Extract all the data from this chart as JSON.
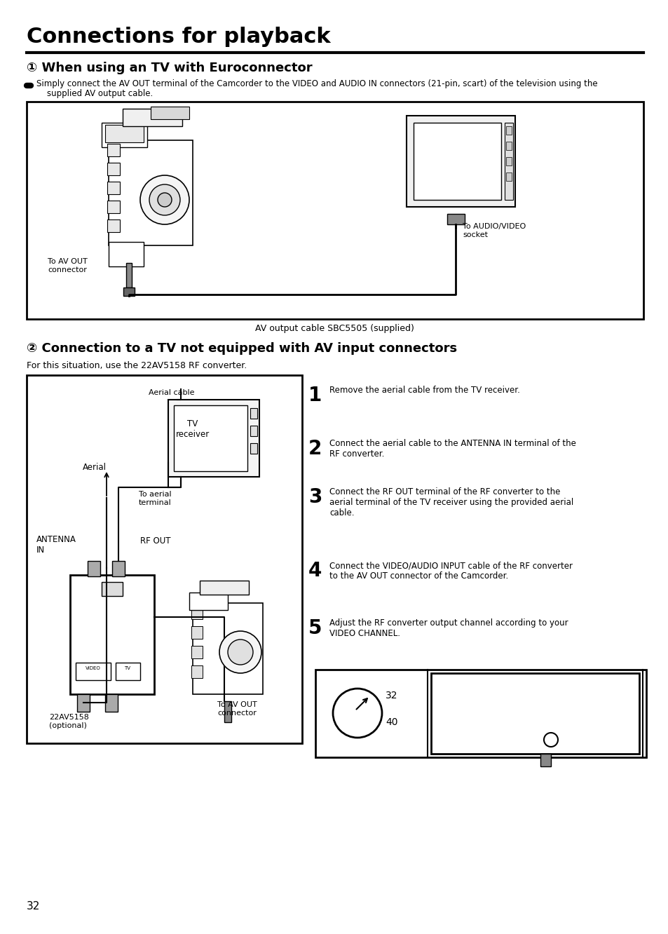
{
  "title": "Connections for playback",
  "section1_title": "① When using an TV with Euroconnector",
  "section1_bullet": "Simply connect the AV OUT terminal of the Camcorder to the VIDEO and AUDIO IN connectors (21-pin, scart) of the television using the",
  "section1_bullet2": "supplied AV output cable.",
  "section2_title": "② Connection to a TV not equipped with AV input connectors",
  "section2_intro": "For this situation, use the 22AV5158 RF converter.",
  "av_cable_label": "AV output cable SBC5505 (supplied)",
  "to_av_out": "To AV OUT\nconnector",
  "to_audio_video": "To AUDIO/VIDEO\nsocket",
  "aerial_cable_label": "Aerial cable",
  "aerial_label": "Aerial",
  "antenna_in": "ANTENNA\nIN",
  "rf_out": "RF OUT",
  "to_aerial_terminal": "To aerial\nterminal",
  "av5158_label": "22AV5158\n(optional)",
  "to_av_out2": "To AV OUT\nconnector",
  "tv_receiver_label": "TV\nreceiver",
  "steps": [
    {
      "num": "1",
      "text": "Remove the aerial cable from the TV receiver."
    },
    {
      "num": "2",
      "text": "Connect the aerial cable to the ANTENNA IN terminal of the\nRF converter."
    },
    {
      "num": "3",
      "text": "Connect the RF OUT terminal of the RF converter to the\naerial terminal of the TV receiver using the provided aerial\ncable."
    },
    {
      "num": "4",
      "text": "Connect the VIDEO/AUDIO INPUT cable of the RF converter\nto the AV OUT connector of the Camcorder."
    },
    {
      "num": "5",
      "text": "Adjust the RF converter output channel according to your\nVIDEO CHANNEL."
    }
  ],
  "page_number": "32",
  "bg_color": "#ffffff",
  "text_color": "#000000"
}
